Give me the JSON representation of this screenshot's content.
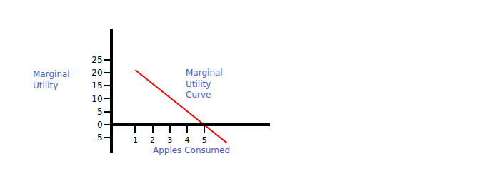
{
  "chart_data": {
    "type": "line",
    "x_label": "Apples Consumed",
    "y_label": "Marginal Utility",
    "annotations": [
      "Marginal Utility Curve"
    ],
    "x": [
      1,
      6.3
    ],
    "values": [
      21,
      -7
    ],
    "color": "#ff0000",
    "xlim": [
      -0.3,
      8.8
    ],
    "xticks": [
      1,
      2,
      3,
      4,
      5
    ],
    "ylim": [
      -11,
      37
    ],
    "yticks": [
      -5,
      0,
      5,
      10,
      15,
      20,
      25
    ],
    "grid": false
  }
}
